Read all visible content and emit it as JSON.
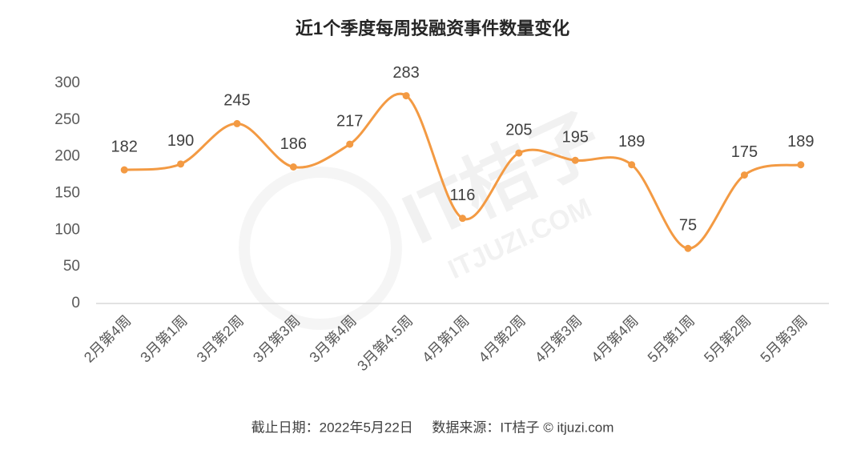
{
  "chart_data": {
    "type": "line",
    "title": "近1个季度每周投融资事件数量变化",
    "categories": [
      "2月第4周",
      "3月第1周",
      "3月第2周",
      "3月第3周",
      "3月第4周",
      "3月第4.5周",
      "4月第1周",
      "4月第2周",
      "4月第3周",
      "4月第4周",
      "5月第1周",
      "5月第2周",
      "5月第3周"
    ],
    "values": [
      182,
      190,
      245,
      186,
      217,
      283,
      116,
      205,
      195,
      189,
      75,
      175,
      189
    ],
    "color": "#f39a43",
    "smooth": true,
    "ylim": [
      0,
      300
    ],
    "yticks": [
      0,
      50,
      100,
      150,
      200,
      250,
      300
    ],
    "grid": false,
    "watermark": [
      "IT桔子",
      "ITJUZI.COM"
    ],
    "source": "截止日期：2022年5月22日     数据来源：IT桔子 © itjuzi.com"
  }
}
